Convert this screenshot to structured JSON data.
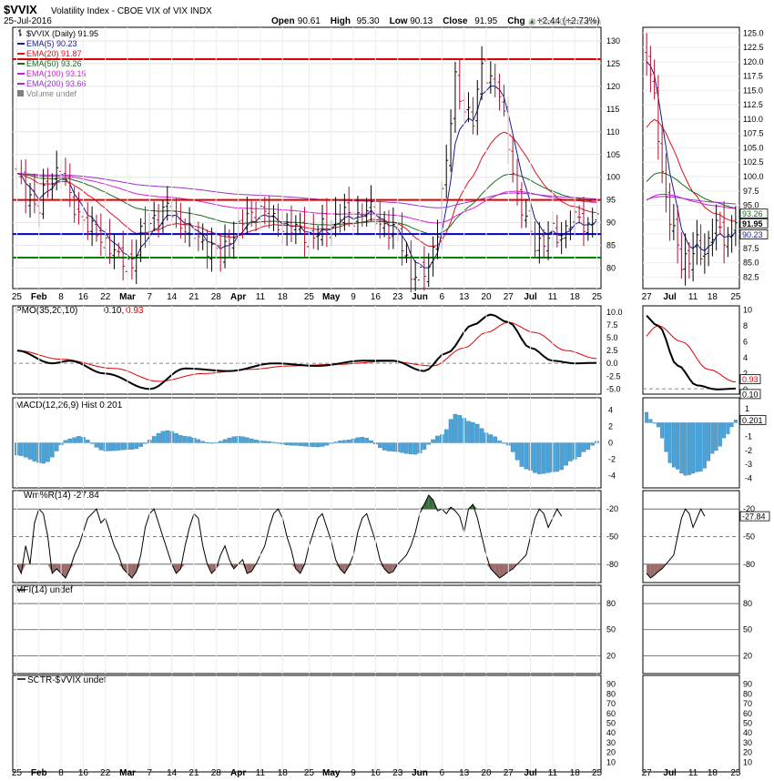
{
  "header": {
    "symbol": "$VVIX",
    "name": "Volatility Index - CBOE VIX of VIX INDX",
    "date": "25-Jul-2016",
    "ohlc": [
      {
        "label": "Open",
        "value": "90.61"
      },
      {
        "label": "High",
        "value": "95.30"
      },
      {
        "label": "Low",
        "value": "90.13"
      },
      {
        "label": "Close",
        "value": "91.95"
      },
      {
        "label": "Chg",
        "value": "+2.44 (+2.73%)"
      }
    ],
    "chg_arrow": "▲",
    "watermark": "@ StockCharts.com"
  },
  "colors": {
    "price_up": "#000000",
    "price_down": "#aa1133",
    "ema5": "#1a1a8c",
    "ema20": "#dd1122",
    "ema50": "#1c6b1c",
    "ema100": "#d21fd2",
    "ema200": "#9932cc",
    "hline_red": "#dd0000",
    "hline_blue": "#0000cc",
    "hline_green": "#008000",
    "pmo": "#000000",
    "pmo_signal": "#dd0000",
    "macd_hist": "#4aa3d9",
    "willr": "#000000",
    "willr_over": "#3d6b3d",
    "willr_under": "#9a6b6b"
  },
  "legend": [
    {
      "label": "$VVIX (Daily) 91.95",
      "color": "#000000",
      "marker": "bar"
    },
    {
      "label": "EMA(5) 90.23",
      "color": "#1a1a8c",
      "marker": "line"
    },
    {
      "label": "EMA(20) 91.87",
      "color": "#dd1122",
      "marker": "line"
    },
    {
      "label": "EMA(50) 93.26",
      "color": "#1c6b1c",
      "marker": "line"
    },
    {
      "label": "EMA(100) 93.15",
      "color": "#d21fd2",
      "marker": "line"
    },
    {
      "label": "EMA(200) 93.66",
      "color": "#9932cc",
      "marker": "line"
    },
    {
      "label": "Volume undef",
      "color": "#808080",
      "marker": "vol"
    }
  ],
  "panels": {
    "pmo": {
      "label": "PMO(35,20,10)",
      "value1": "0.10,",
      "value2": "0.93"
    },
    "macd": {
      "label": "MACD(12,26,9) Hist 0.201"
    },
    "willr": {
      "label": "Wm%R(14) -27.84"
    },
    "mfi": {
      "label": "MFI(14) undef"
    },
    "sctr": {
      "label": "SCTR-$VVIX undef"
    }
  },
  "price_tags": [
    {
      "text": "93.26",
      "value": 93.26,
      "color": "#1c6b1c"
    },
    {
      "text": "91.87",
      "value": 91.87,
      "color": "#dd1122"
    },
    {
      "text": "91.95",
      "value": 91.95,
      "color": "#000000"
    },
    {
      "text": "90.23",
      "value": 90.23,
      "color": "#1a1a8c"
    }
  ],
  "indicator_tags": {
    "pmo": [
      {
        "text": "0.93",
        "value": 0.93,
        "color": "#dd0000"
      },
      {
        "text": "0.10",
        "value": 0.1,
        "color": "#000000"
      }
    ],
    "macd": [
      {
        "text": "0.201",
        "value": 0.201,
        "color": "#000000"
      }
    ],
    "willr": [
      {
        "text": "-27.84",
        "value": -27.84,
        "color": "#000000"
      }
    ]
  },
  "chart_data": {
    "type": "line",
    "title": "$VVIX Volatility Index - CBOE VIX of VIX INDX",
    "x_labels_main": [
      "25",
      "Feb",
      "8",
      "16",
      "22",
      "Mar",
      "7",
      "14",
      "21",
      "28",
      "Apr",
      "11",
      "18",
      "25",
      "May",
      "9",
      "16",
      "23",
      "Jun",
      "6",
      "13",
      "20",
      "27",
      "Jul",
      "11",
      "18",
      "25"
    ],
    "x_labels_side": [
      "27",
      "Jul",
      "11",
      "18",
      "25"
    ],
    "price_axis": [
      80,
      85,
      90,
      95,
      100,
      105,
      110,
      115,
      120,
      125,
      130
    ],
    "price_axis_side": [
      82.5,
      85.0,
      87.5,
      90.0,
      92.5,
      95.0,
      97.5,
      100.0,
      102.5,
      105.0,
      107.5,
      110.0,
      112.5,
      115.0,
      117.5,
      120.0,
      122.5,
      125.0
    ],
    "ylim_price": [
      75.5,
      133
    ],
    "ylim_price_side": [
      80.5,
      126
    ],
    "horizontal_lines": [
      {
        "value": 126,
        "color": "red"
      },
      {
        "value": 95,
        "color": "red"
      },
      {
        "value": 87.5,
        "color": "blue"
      },
      {
        "value": 82.3,
        "color": "green"
      }
    ],
    "close_anchors": [
      [
        0,
        100
      ],
      [
        2,
        97
      ],
      [
        5,
        93
      ],
      [
        7,
        99
      ],
      [
        10,
        102
      ],
      [
        12,
        95
      ],
      [
        14,
        92
      ],
      [
        17,
        88
      ],
      [
        20,
        86
      ],
      [
        23,
        82
      ],
      [
        26,
        81
      ],
      [
        28,
        87
      ],
      [
        31,
        91
      ],
      [
        34,
        93
      ],
      [
        37,
        90
      ],
      [
        40,
        87
      ],
      [
        43,
        85
      ],
      [
        46,
        83
      ],
      [
        49,
        88
      ],
      [
        52,
        91
      ],
      [
        55,
        93
      ],
      [
        58,
        90
      ],
      [
        61,
        89
      ],
      [
        64,
        88
      ],
      [
        67,
        87
      ],
      [
        70,
        89
      ],
      [
        73,
        92
      ],
      [
        76,
        91
      ],
      [
        79,
        93
      ],
      [
        82,
        90
      ],
      [
        85,
        88
      ],
      [
        87,
        85
      ],
      [
        89,
        79
      ],
      [
        91,
        78
      ],
      [
        93,
        80
      ],
      [
        95,
        89
      ],
      [
        97,
        103
      ],
      [
        99,
        122
      ],
      [
        101,
        115
      ],
      [
        103,
        112
      ],
      [
        105,
        125
      ],
      [
        107,
        121
      ],
      [
        109,
        118
      ],
      [
        111,
        108
      ],
      [
        113,
        95
      ],
      [
        115,
        90
      ],
      [
        117,
        86
      ],
      [
        119,
        85
      ],
      [
        121,
        88
      ],
      [
        123,
        87
      ],
      [
        125,
        90
      ],
      [
        127,
        91
      ],
      [
        129,
        89
      ],
      [
        131,
        91.95
      ]
    ],
    "ema_final": {
      "EMA(5)": 90.23,
      "EMA(20)": 91.87,
      "EMA(50)": 93.26,
      "EMA(100)": 93.15,
      "EMA(200)": 93.66
    },
    "pmo_axis": [
      -5.0,
      -2.5,
      0.0,
      2.5,
      5.0,
      7.5,
      10.0
    ],
    "pmo_anchors": [
      [
        0,
        2.5
      ],
      [
        8,
        0
      ],
      [
        12,
        0.5
      ],
      [
        20,
        -2
      ],
      [
        30,
        -5
      ],
      [
        38,
        -1
      ],
      [
        48,
        -1.5
      ],
      [
        58,
        0
      ],
      [
        68,
        -0.5
      ],
      [
        78,
        0.5
      ],
      [
        85,
        0.5
      ],
      [
        92,
        -1.5
      ],
      [
        97,
        2
      ],
      [
        103,
        7.5
      ],
      [
        107,
        9.5
      ],
      [
        111,
        8
      ],
      [
        116,
        3
      ],
      [
        121,
        0.5
      ],
      [
        126,
        0
      ],
      [
        131,
        0.1
      ]
    ],
    "pmo_signal_anchors": [
      [
        0,
        2.5
      ],
      [
        10,
        0.8
      ],
      [
        22,
        -1
      ],
      [
        32,
        -3.5
      ],
      [
        42,
        -2
      ],
      [
        52,
        -1.2
      ],
      [
        62,
        -0.5
      ],
      [
        72,
        -0.2
      ],
      [
        84,
        0.4
      ],
      [
        94,
        -0.5
      ],
      [
        101,
        3
      ],
      [
        106,
        6
      ],
      [
        111,
        8
      ],
      [
        117,
        6
      ],
      [
        124,
        2.5
      ],
      [
        131,
        0.93
      ]
    ],
    "macd_axis": [
      -4,
      -2,
      0,
      2,
      4
    ],
    "macd_hist_anchors": [
      [
        0,
        -1.5
      ],
      [
        6,
        -2.5
      ],
      [
        12,
        0.5
      ],
      [
        14,
        0.8
      ],
      [
        20,
        -1
      ],
      [
        26,
        -0.8
      ],
      [
        34,
        1.5
      ],
      [
        38,
        0.8
      ],
      [
        44,
        0
      ],
      [
        50,
        0.8
      ],
      [
        56,
        0.2
      ],
      [
        62,
        -0.3
      ],
      [
        68,
        -0.5
      ],
      [
        74,
        0.3
      ],
      [
        78,
        0.7
      ],
      [
        84,
        -1
      ],
      [
        90,
        -1.4
      ],
      [
        96,
        1
      ],
      [
        99,
        3.5
      ],
      [
        103,
        2.5
      ],
      [
        107,
        1
      ],
      [
        110,
        0
      ],
      [
        115,
        -3.2
      ],
      [
        118,
        -3.8
      ],
      [
        122,
        -3.5
      ],
      [
        126,
        -2
      ],
      [
        129,
        -0.8
      ],
      [
        131,
        0.201
      ]
    ],
    "willr_axis": [
      -20,
      -50,
      -80
    ],
    "willr_values": [
      -80,
      -90,
      -60,
      -80,
      -35,
      -20,
      -25,
      -50,
      -90,
      -85,
      -90,
      -95,
      -85,
      -70,
      -60,
      -45,
      -30,
      -25,
      -20,
      -35,
      -30,
      -45,
      -60,
      -70,
      -85,
      -90,
      -95,
      -88,
      -70,
      -40,
      -25,
      -20,
      -35,
      -50,
      -65,
      -80,
      -90,
      -85,
      -60,
      -40,
      -25,
      -30,
      -60,
      -80,
      -90,
      -85,
      -70,
      -60,
      -75,
      -85,
      -80,
      -75,
      -90,
      -88,
      -80,
      -70,
      -60,
      -40,
      -25,
      -20,
      -30,
      -50,
      -65,
      -85,
      -90,
      -80,
      -60,
      -45,
      -30,
      -25,
      -40,
      -55,
      -75,
      -85,
      -90,
      -82,
      -70,
      -45,
      -30,
      -25,
      -40,
      -55,
      -75,
      -85,
      -90,
      -88,
      -80,
      -75,
      -70,
      -60,
      -45,
      -25,
      -15,
      -5,
      -10,
      -22,
      -20,
      -25,
      -18,
      -22,
      -28,
      -45,
      -20,
      -15,
      -30,
      -50,
      -70,
      -85,
      -90,
      -95,
      -92,
      -88,
      -85,
      -80,
      -75,
      -70,
      -50,
      -30,
      -20,
      -25,
      -40,
      -30,
      -20,
      -27.84
    ],
    "mfi_axis": [
      20,
      50,
      80
    ],
    "sctr_axis": [
      10,
      20,
      30,
      40,
      50,
      60,
      70,
      80,
      90
    ]
  }
}
